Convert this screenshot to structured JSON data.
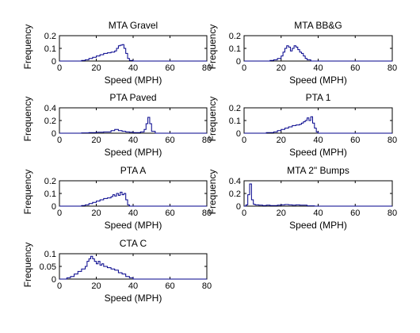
{
  "chart_data": [
    {
      "type": "step-histogram",
      "title": "MTA Gravel",
      "xlabel": "Speed (MPH)",
      "ylabel": "Frequency",
      "xlim": [
        0,
        80
      ],
      "ylim": [
        0,
        0.2
      ],
      "xticks": [
        "0",
        "20",
        "40",
        "60",
        "80"
      ],
      "yticks": [
        "0",
        "0.1",
        "0.2"
      ],
      "x": [
        0,
        12,
        14,
        16,
        18,
        20,
        22,
        24,
        26,
        28,
        30,
        31,
        32,
        33,
        34,
        35,
        36,
        37,
        38,
        40,
        80
      ],
      "y": [
        0,
        0.005,
        0.01,
        0.02,
        0.03,
        0.04,
        0.05,
        0.06,
        0.065,
        0.07,
        0.08,
        0.1,
        0.12,
        0.125,
        0.13,
        0.1,
        0.06,
        0.02,
        0.005,
        0,
        0
      ]
    },
    {
      "type": "step-histogram",
      "title": "MTA BB&G",
      "xlabel": "Speed (MPH)",
      "ylabel": "Frequency",
      "xlim": [
        0,
        80
      ],
      "ylim": [
        0,
        0.2
      ],
      "xticks": [
        "0",
        "20",
        "40",
        "60",
        "80"
      ],
      "yticks": [
        "0",
        "0.1",
        "0.2"
      ],
      "x": [
        0,
        14,
        16,
        18,
        20,
        21,
        22,
        23,
        24,
        25,
        26,
        27,
        28,
        29,
        30,
        31,
        32,
        33,
        34,
        36,
        80
      ],
      "y": [
        0,
        0.005,
        0.01,
        0.02,
        0.04,
        0.07,
        0.1,
        0.12,
        0.11,
        0.08,
        0.1,
        0.12,
        0.11,
        0.09,
        0.07,
        0.06,
        0.04,
        0.02,
        0.01,
        0,
        0
      ]
    },
    {
      "type": "step-histogram",
      "title": "PTA Paved",
      "xlabel": "Speed (MPH)",
      "ylabel": "Frequency",
      "xlim": [
        0,
        80
      ],
      "ylim": [
        0,
        0.4
      ],
      "xticks": [
        "0",
        "20",
        "40",
        "60",
        "80"
      ],
      "yticks": [
        "0",
        "0.2",
        "0.4"
      ],
      "x": [
        0,
        12,
        16,
        20,
        24,
        28,
        30,
        32,
        34,
        36,
        38,
        40,
        42,
        44,
        46,
        47,
        48,
        49,
        50,
        52,
        80
      ],
      "y": [
        0,
        0.005,
        0.01,
        0.015,
        0.02,
        0.04,
        0.06,
        0.04,
        0.03,
        0.02,
        0.015,
        0.01,
        0.01,
        0.02,
        0.06,
        0.15,
        0.25,
        0.15,
        0.03,
        0,
        0
      ]
    },
    {
      "type": "step-histogram",
      "title": "PTA 1",
      "xlabel": "Speed (MPH)",
      "ylabel": "Frequency",
      "xlim": [
        0,
        80
      ],
      "ylim": [
        0,
        0.2
      ],
      "xticks": [
        "0",
        "20",
        "40",
        "60",
        "80"
      ],
      "yticks": [
        "0",
        "0.1",
        "0.2"
      ],
      "x": [
        0,
        12,
        16,
        18,
        20,
        22,
        24,
        26,
        28,
        30,
        31,
        32,
        33,
        34,
        35,
        36,
        37,
        38,
        39,
        40,
        80
      ],
      "y": [
        0,
        0.005,
        0.01,
        0.02,
        0.03,
        0.04,
        0.05,
        0.06,
        0.065,
        0.07,
        0.08,
        0.09,
        0.1,
        0.12,
        0.1,
        0.13,
        0.08,
        0.04,
        0.01,
        0,
        0
      ]
    },
    {
      "type": "step-histogram",
      "title": "PTA A",
      "xlabel": "Speed (MPH)",
      "ylabel": "Frequency",
      "xlim": [
        0,
        80
      ],
      "ylim": [
        0,
        0.2
      ],
      "xticks": [
        "0",
        "20",
        "40",
        "60",
        "80"
      ],
      "yticks": [
        "0",
        "0.1",
        "0.2"
      ],
      "x": [
        0,
        12,
        14,
        16,
        18,
        20,
        22,
        24,
        26,
        28,
        29,
        30,
        31,
        32,
        33,
        34,
        35,
        36,
        37,
        38,
        80
      ],
      "y": [
        0,
        0.005,
        0.01,
        0.02,
        0.03,
        0.04,
        0.05,
        0.06,
        0.065,
        0.075,
        0.09,
        0.08,
        0.1,
        0.085,
        0.11,
        0.09,
        0.1,
        0.05,
        0.01,
        0,
        0
      ]
    },
    {
      "type": "step-histogram",
      "title": "MTA 2\" Bumps",
      "xlabel": "Speed (MPH)",
      "ylabel": "Frequency",
      "xlim": [
        0,
        80
      ],
      "ylim": [
        0,
        0.4
      ],
      "xticks": [
        "0",
        "20",
        "40",
        "60",
        "80"
      ],
      "yticks": [
        "0",
        "0.2",
        "0.4"
      ],
      "x": [
        0,
        1,
        2,
        3,
        4,
        5,
        6,
        8,
        10,
        12,
        14,
        16,
        18,
        20,
        22,
        24,
        26,
        28,
        30,
        34,
        38,
        80
      ],
      "y": [
        0,
        0.02,
        0.18,
        0.35,
        0.1,
        0.03,
        0.02,
        0.015,
        0.01,
        0.015,
        0.01,
        0.01,
        0.015,
        0.02,
        0.025,
        0.02,
        0.015,
        0.02,
        0.015,
        0.005,
        0,
        0
      ]
    },
    {
      "type": "step-histogram",
      "title": "CTA C",
      "xlabel": "Speed (MPH)",
      "ylabel": "Frequency",
      "xlim": [
        0,
        80
      ],
      "ylim": [
        0,
        0.1
      ],
      "xticks": [
        "0",
        "20",
        "40",
        "60",
        "80"
      ],
      "yticks": [
        "0",
        "0.05",
        "0.1"
      ],
      "x": [
        0,
        4,
        6,
        8,
        10,
        12,
        14,
        15,
        16,
        17,
        18,
        19,
        20,
        21,
        22,
        23,
        24,
        26,
        28,
        30,
        32,
        34,
        36,
        38,
        40,
        80
      ],
      "y": [
        0,
        0.005,
        0.01,
        0.02,
        0.03,
        0.04,
        0.05,
        0.07,
        0.08,
        0.09,
        0.08,
        0.07,
        0.06,
        0.07,
        0.055,
        0.06,
        0.05,
        0.045,
        0.04,
        0.035,
        0.025,
        0.02,
        0.01,
        0.005,
        0,
        0
      ]
    }
  ]
}
